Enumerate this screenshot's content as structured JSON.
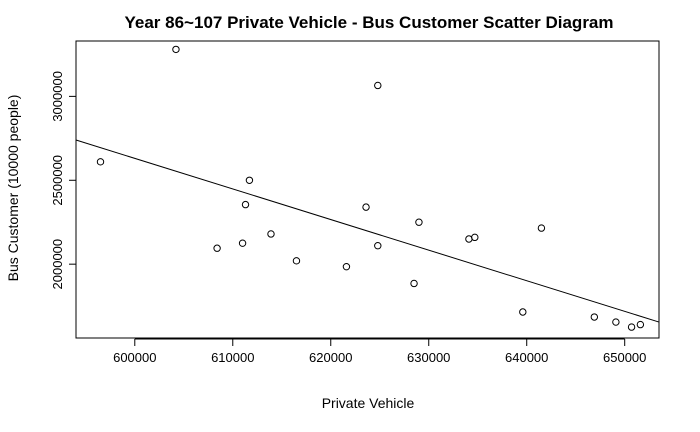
{
  "chart_data": {
    "type": "scatter",
    "title": "Year 86~107 Private Vehicle  -  Bus Customer Scatter Diagram",
    "xlabel": "Private Vehicle",
    "ylabel": "Bus Customer (10000 people)",
    "xlim": [
      594000,
      653500
    ],
    "ylim": [
      1560000,
      3330000
    ],
    "x_ticks": [
      600000,
      610000,
      620000,
      630000,
      640000,
      650000
    ],
    "x_tick_labels": [
      "600000",
      "610000",
      "620000",
      "630000",
      "640000",
      "650000"
    ],
    "y_ticks": [
      2000000,
      2500000,
      3000000
    ],
    "y_tick_labels": [
      "2000000",
      "2500000",
      "3000000"
    ],
    "grid": false,
    "legend": "none",
    "marker": "open-circle",
    "colors": {
      "points": "#000000",
      "line": "#000000",
      "axis": "#000000"
    },
    "points": [
      {
        "x": 596500,
        "y": 2610000
      },
      {
        "x": 604200,
        "y": 3280000
      },
      {
        "x": 608400,
        "y": 2095000
      },
      {
        "x": 611000,
        "y": 2125000
      },
      {
        "x": 611300,
        "y": 2355000
      },
      {
        "x": 611700,
        "y": 2500000
      },
      {
        "x": 613900,
        "y": 2180000
      },
      {
        "x": 616500,
        "y": 2020000
      },
      {
        "x": 621600,
        "y": 1985000
      },
      {
        "x": 623600,
        "y": 2340000
      },
      {
        "x": 624800,
        "y": 3065000
      },
      {
        "x": 624800,
        "y": 2110000
      },
      {
        "x": 628500,
        "y": 1885000
      },
      {
        "x": 629000,
        "y": 2250000
      },
      {
        "x": 634100,
        "y": 2150000
      },
      {
        "x": 634700,
        "y": 2160000
      },
      {
        "x": 639600,
        "y": 1715000
      },
      {
        "x": 641500,
        "y": 2215000
      },
      {
        "x": 646900,
        "y": 1685000
      },
      {
        "x": 649100,
        "y": 1655000
      },
      {
        "x": 650700,
        "y": 1625000
      },
      {
        "x": 651600,
        "y": 1640000
      }
    ],
    "fit_line": {
      "x": [
        594000,
        653500
      ],
      "y": [
        2740000,
        1655000
      ]
    }
  }
}
